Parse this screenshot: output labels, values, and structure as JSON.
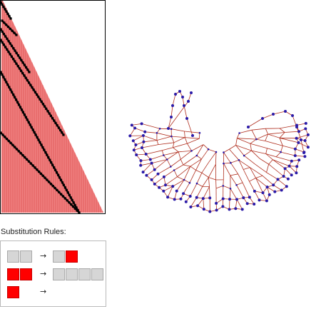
{
  "rules": {
    "title": "Substitution Rules:",
    "arrow": "→",
    "items": [
      {
        "lhs": [
          "gray",
          "gray"
        ],
        "rhs": [
          "gray",
          "red"
        ]
      },
      {
        "lhs": [
          "red",
          "red"
        ],
        "rhs": [
          "gray",
          "gray",
          "gray",
          "gray"
        ]
      },
      {
        "lhs": [
          "red"
        ],
        "rhs": []
      }
    ]
  },
  "colors": {
    "evolution_fill": "#f08080",
    "evolution_stripe": "#c81e1e",
    "evolution_marker": "#000000",
    "graph_edge": "#b03020",
    "graph_node": "#2a1aa8",
    "cell_gray": "#d6d6d6",
    "cell_red": "#ff0000"
  }
}
